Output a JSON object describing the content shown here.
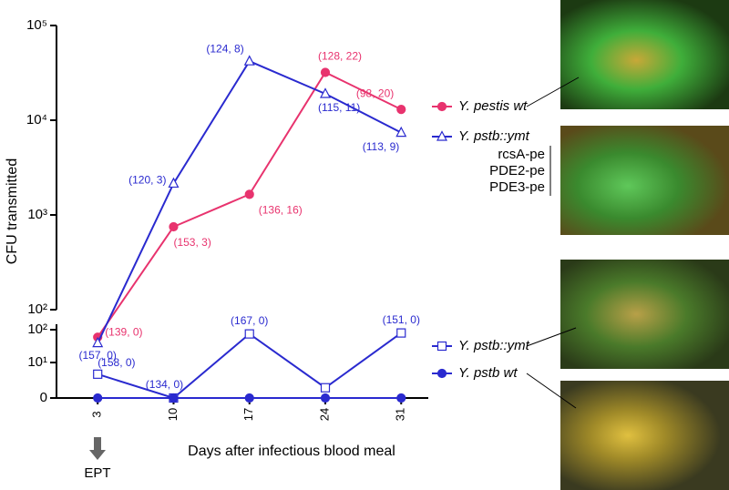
{
  "chart_data": {
    "type": "line",
    "y_label": "CFU transmitted",
    "x_label": "Days after infectious blood meal",
    "annotation": "EPT",
    "x": [
      3,
      10,
      17,
      24,
      31
    ],
    "xlim": [
      -0.8,
      33.5
    ],
    "xticks": [
      3,
      10,
      17,
      24,
      31
    ],
    "ylim": [
      0,
      100000
    ],
    "ybreak": 100,
    "yscale": "log",
    "yticks": [
      {
        "value": 100,
        "label": "10²"
      },
      {
        "value": 1000,
        "label": "10³"
      },
      {
        "value": 10000,
        "label": "10⁴"
      },
      {
        "value": 100000,
        "label": "10⁵"
      }
    ],
    "y_lower_ticks": [
      0,
      {
        "value": 10,
        "label": "10¹"
      },
      {
        "value": 100,
        "label": "10²"
      }
    ],
    "legend_note": [
      "rcsA-pe",
      "PDE2-pe",
      "PDE3-pe"
    ],
    "series": [
      {
        "name": "Y. pestis wt",
        "color": "#e8336e",
        "marker": "circle",
        "filled": true,
        "values": [
          60,
          750,
          1650,
          32000,
          13000
        ],
        "point_labels": [
          "(139, 0)",
          "(153, 3)",
          "(136, 16)",
          "(128, 22)",
          "(98, 20)"
        ]
      },
      {
        "name": "Y. pstb::ymt",
        "color": "#2a2acf",
        "marker": "triangle",
        "filled": false,
        "values": [
          40,
          2150,
          42000,
          19000,
          7400
        ],
        "point_labels": [
          "(157, 0)",
          "(120, 3)",
          "(124, 8)",
          "(115, 11)",
          "(113, 9)"
        ]
      },
      {
        "name": "Y. pstb::ymt",
        "color": "#2a2acf",
        "marker": "square",
        "filled": false,
        "values": [
          4,
          0,
          75,
          1,
          80
        ],
        "point_labels": [
          "(158, 0)",
          "(134, 0)",
          "(167, 0)",
          null,
          "(151, 0)"
        ]
      },
      {
        "name": "Y. pstb wt",
        "color": "#2a2acf",
        "marker": "circle",
        "filled": true,
        "values": [
          0,
          0,
          0,
          0,
          0
        ]
      }
    ]
  }
}
